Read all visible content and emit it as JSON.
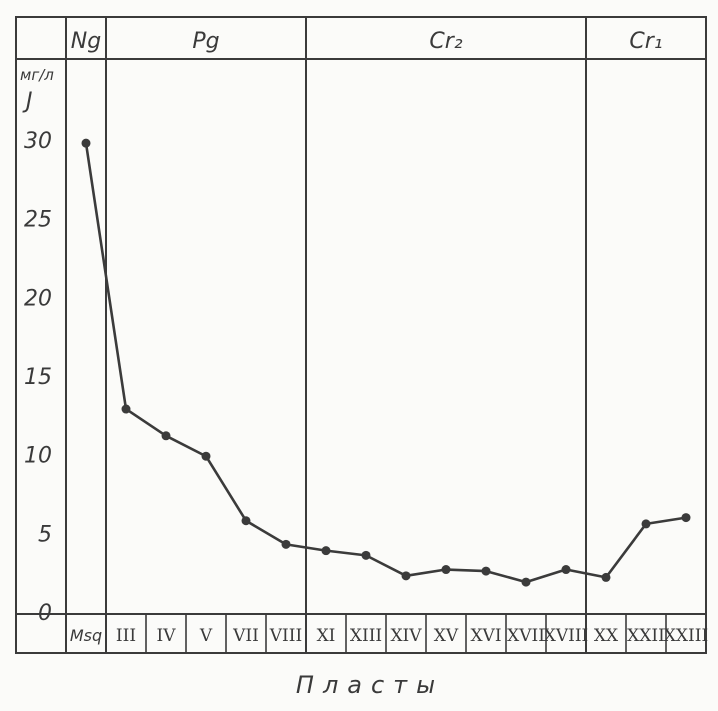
{
  "chart_data": {
    "type": "line",
    "ylabel_unit": "мг/л",
    "ylabel_symbol": "J",
    "xlabel": "Пласты",
    "ylim": [
      0,
      35
    ],
    "yticks": [
      0,
      5,
      10,
      15,
      20,
      25,
      30
    ],
    "categories": [
      "Msq",
      "III",
      "IV",
      "V",
      "VII",
      "VIII",
      "XI",
      "XIII",
      "XIV",
      "XV",
      "XVI",
      "XVII",
      "XVIII",
      "XX",
      "XXII",
      "XXIII"
    ],
    "values": [
      29.8,
      12.9,
      11.2,
      9.9,
      5.8,
      4.3,
      3.9,
      3.6,
      2.3,
      2.7,
      2.6,
      1.9,
      2.7,
      2.2,
      5.6,
      6.0
    ],
    "stratigraphy": [
      {
        "label": "Ng",
        "span": [
          0,
          0
        ]
      },
      {
        "label": "Pg",
        "span": [
          1,
          5
        ]
      },
      {
        "label": "Cr₂",
        "span": [
          6,
          12
        ]
      },
      {
        "label": "Cr₁",
        "span": [
          13,
          15
        ]
      }
    ],
    "grid": false,
    "line_color": "#3b3b3b"
  }
}
